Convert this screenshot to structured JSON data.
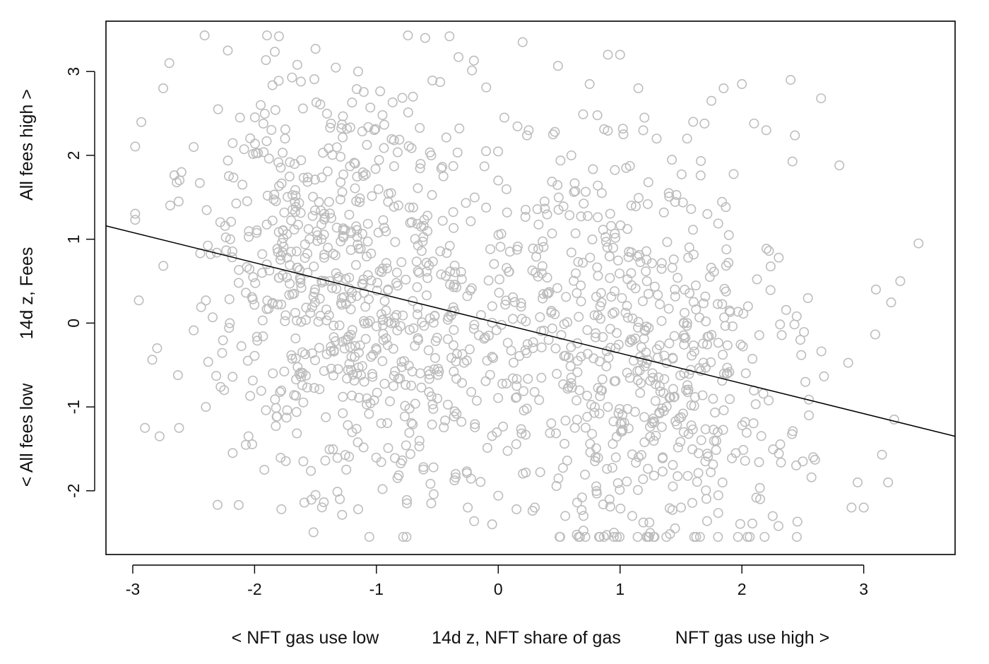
{
  "chart_data": {
    "type": "scatter",
    "title": "",
    "xlabel": {
      "left": "< NFT gas use low",
      "center": "14d z, NFT share of gas",
      "right": "NFT gas use high >"
    },
    "ylabel": {
      "left": "< All fees low",
      "center": "14d z, Fees",
      "right": "All fees high >"
    },
    "xlim": [
      -3.22,
      3.75
    ],
    "ylim": [
      -2.76,
      3.6
    ],
    "x_ticks": [
      -3,
      -2,
      -1,
      0,
      1,
      2,
      3
    ],
    "y_ticks": [
      -2,
      -1,
      0,
      1,
      2,
      3
    ],
    "grid": false,
    "legend": "none",
    "point_color": "#bdbdbd",
    "line_color": "#000000",
    "regression_line": {
      "intercept": 0.0,
      "slope": -0.36
    },
    "point_count": 1400,
    "x": [
      -2.95,
      -2.8,
      -2.75,
      -2.7,
      -2.6,
      -2.5,
      -2.45,
      -2.4,
      -2.3,
      -2.22,
      -2.2,
      -2.12,
      -2.1,
      -1.95,
      -1.8,
      -1.9,
      -1.75,
      -1.62,
      -1.5,
      -1.45,
      -1.38,
      -1.2,
      -1.15,
      -1.05,
      -0.95,
      -0.88,
      -0.7,
      -0.6,
      -0.55,
      -0.45,
      -0.4,
      -0.2,
      -0.1,
      0.0,
      0.05,
      0.2,
      0.25,
      0.38,
      0.45,
      0.6,
      0.75,
      0.85,
      0.9,
      1.0,
      1.05,
      1.15,
      1.2,
      1.3,
      1.4,
      1.55,
      1.6,
      1.75,
      1.85,
      2.0,
      2.1,
      2.2,
      2.4,
      2.65,
      2.8,
      3.1,
      3.3,
      3.45,
      3.15,
      3.25,
      3.2,
      2.95,
      2.9,
      2.6,
      2.5,
      2.3,
      2.15,
      1.95,
      1.7,
      1.5,
      1.35,
      1.1,
      0.95,
      0.7,
      0.55,
      0.3,
      0.15,
      -0.05,
      -0.25,
      -0.35,
      -0.55,
      -0.75,
      -0.95,
      -1.15,
      -1.3,
      -1.5,
      -1.6,
      -1.78,
      -1.92,
      -2.05,
      -2.18,
      -2.4,
      -2.62,
      -2.78,
      -2.9,
      -1.85,
      -1.25,
      -0.65,
      0.12,
      0.68,
      1.22,
      1.88,
      2.48,
      -2.25,
      -1.7,
      -1.1,
      -0.5,
      0.4,
      0.9,
      1.45,
      2.05,
      2.55,
      3.0
    ],
    "y": [
      0.27,
      -0.3,
      2.8,
      3.1,
      1.8,
      2.1,
      1.67,
      0.27,
      2.55,
      3.25,
      1.0,
      2.45,
      1.65,
      2.6,
      3.42,
      0.7,
      2.2,
      2.88,
      3.27,
      1.0,
      2.33,
      2.63,
      3.0,
      2.57,
      2.48,
      1.55,
      2.7,
      3.4,
      2.0,
      1.75,
      3.42,
      3.13,
      2.05,
      1.7,
      2.45,
      3.35,
      2.3,
      1.45,
      2.25,
      2.0,
      2.85,
      1.55,
      3.2,
      3.2,
      1.85,
      2.8,
      2.45,
      2.2,
      1.55,
      2.2,
      2.4,
      2.65,
      2.8,
      2.85,
      2.38,
      2.3,
      2.9,
      2.68,
      1.88,
      0.4,
      0.5,
      0.95,
      -1.57,
      -1.15,
      -1.9,
      -1.9,
      -2.2,
      -1.63,
      -1.65,
      -2.42,
      -2.1,
      -1.55,
      -1.65,
      -2.2,
      -1.6,
      -2.3,
      -2.5,
      -2.3,
      -2.3,
      -2.2,
      -2.22,
      -2.4,
      -2.2,
      -1.8,
      -2.15,
      -2.15,
      -1.98,
      -2.22,
      -2.1,
      -2.05,
      -1.65,
      -2.22,
      -1.75,
      -1.35,
      -1.55,
      -1.0,
      -1.25,
      -1.35,
      -1.25,
      -0.6,
      -0.2,
      0.6,
      0.05,
      -0.4,
      0.5,
      -0.6,
      -0.2,
      -0.8,
      0.85,
      -0.7,
      -0.9,
      0.35,
      -1.0,
      0.4,
      0.2,
      -1.1,
      -2.2
    ]
  }
}
